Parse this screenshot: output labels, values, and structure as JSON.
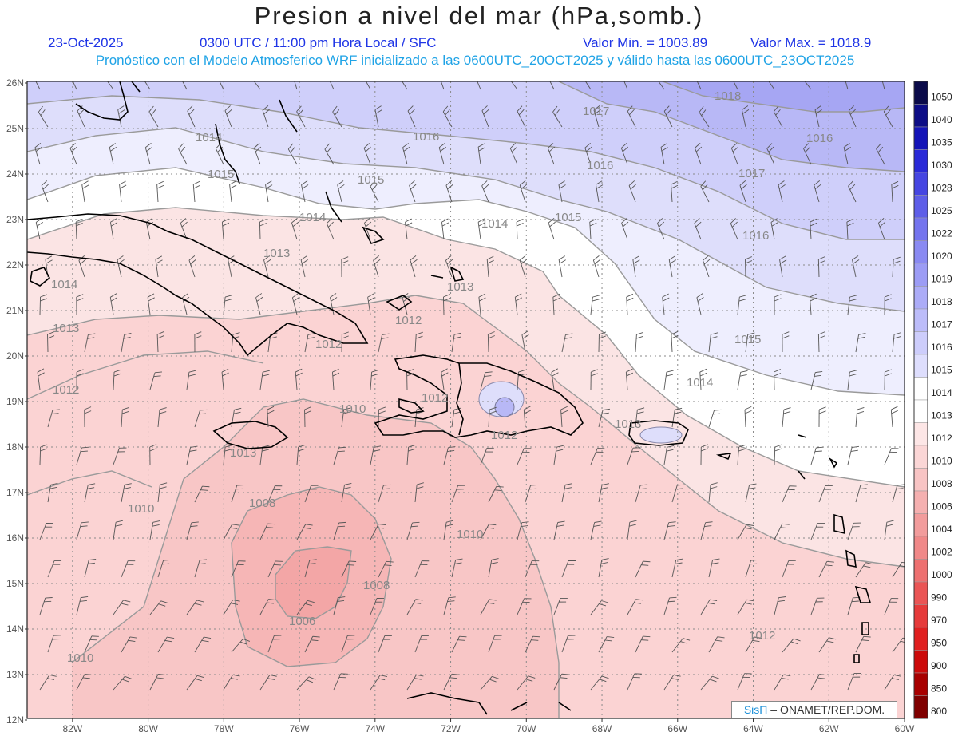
{
  "header": {
    "title": "Presion a nivel del mar (hPa,somb.)",
    "date": "23-Oct-2025",
    "time": "0300 UTC / 11:00 pm Hora Local / SFC",
    "min_label": "Valor Min. = 1003.89",
    "max_label": "Valor Max. = 1018.9",
    "model_info": "Pronóstico con el Modelo Atmosferico WRF inicializado a las 0600UTC_20OCT2025 y válido hasta las  0600UTC_23OCT2025"
  },
  "axes": {
    "lat_labels": [
      "26N",
      "25N",
      "24N",
      "23N",
      "22N",
      "21N",
      "20N",
      "19N",
      "18N",
      "17N",
      "16N",
      "15N",
      "14N",
      "13N",
      "12N"
    ],
    "lon_labels": [
      "82W",
      "80W",
      "78W",
      "76W",
      "74W",
      "72W",
      "70W",
      "68W",
      "66W",
      "64W",
      "62W",
      "60W"
    ]
  },
  "colorbar": {
    "levels": [
      "1050",
      "1040",
      "1035",
      "1030",
      "1028",
      "1025",
      "1022",
      "1020",
      "1019",
      "1018",
      "1017",
      "1016",
      "1015",
      "1014",
      "1013",
      "1012",
      "1010",
      "1008",
      "1006",
      "1004",
      "1002",
      "1000",
      "990",
      "970",
      "950",
      "900",
      "850",
      "800"
    ],
    "colors": [
      "#0b0b4a",
      "#0d0d86",
      "#1414b8",
      "#2a2ad8",
      "#4646e2",
      "#5e5ee8",
      "#7474ee",
      "#8a8af2",
      "#9c9cf5",
      "#acacf7",
      "#bcbcf9",
      "#cdcdfb",
      "#dedefd",
      "#ffffff",
      "#ffffff",
      "#fde6e6",
      "#fbd6d6",
      "#f8c4c4",
      "#f5b0b0",
      "#f29c9c",
      "#f08888",
      "#ed7070",
      "#ea5555",
      "#e63a3a",
      "#e01f1f",
      "#cc0a0a",
      "#a80000",
      "#800000"
    ]
  },
  "contour_labels": [
    {
      "text": "1018"
    },
    {
      "text": "1017"
    },
    {
      "text": "1017"
    },
    {
      "text": "1016"
    },
    {
      "text": "1016"
    },
    {
      "text": "1016"
    },
    {
      "text": "1016"
    },
    {
      "text": "1015"
    },
    {
      "text": "1015"
    },
    {
      "text": "1015"
    },
    {
      "text": "1014"
    },
    {
      "text": "1014"
    },
    {
      "text": "1014"
    },
    {
      "text": "1014"
    },
    {
      "text": "1013"
    },
    {
      "text": "1013"
    },
    {
      "text": "1013"
    },
    {
      "text": "1013"
    },
    {
      "text": "1013"
    },
    {
      "text": "1012"
    },
    {
      "text": "1012"
    },
    {
      "text": "1012"
    },
    {
      "text": "1012"
    },
    {
      "text": "1012"
    },
    {
      "text": "1010"
    },
    {
      "text": "1010"
    },
    {
      "text": "1010"
    },
    {
      "text": "1010"
    },
    {
      "text": "1008"
    },
    {
      "text": "1008"
    },
    {
      "text": "1006"
    },
    {
      "text": "1014"
    },
    {
      "text": "1015"
    },
    {
      "text": "1012"
    }
  ],
  "credit": {
    "brand": "SisΠ",
    "text": "– ONAMET/REP.DOM."
  }
}
